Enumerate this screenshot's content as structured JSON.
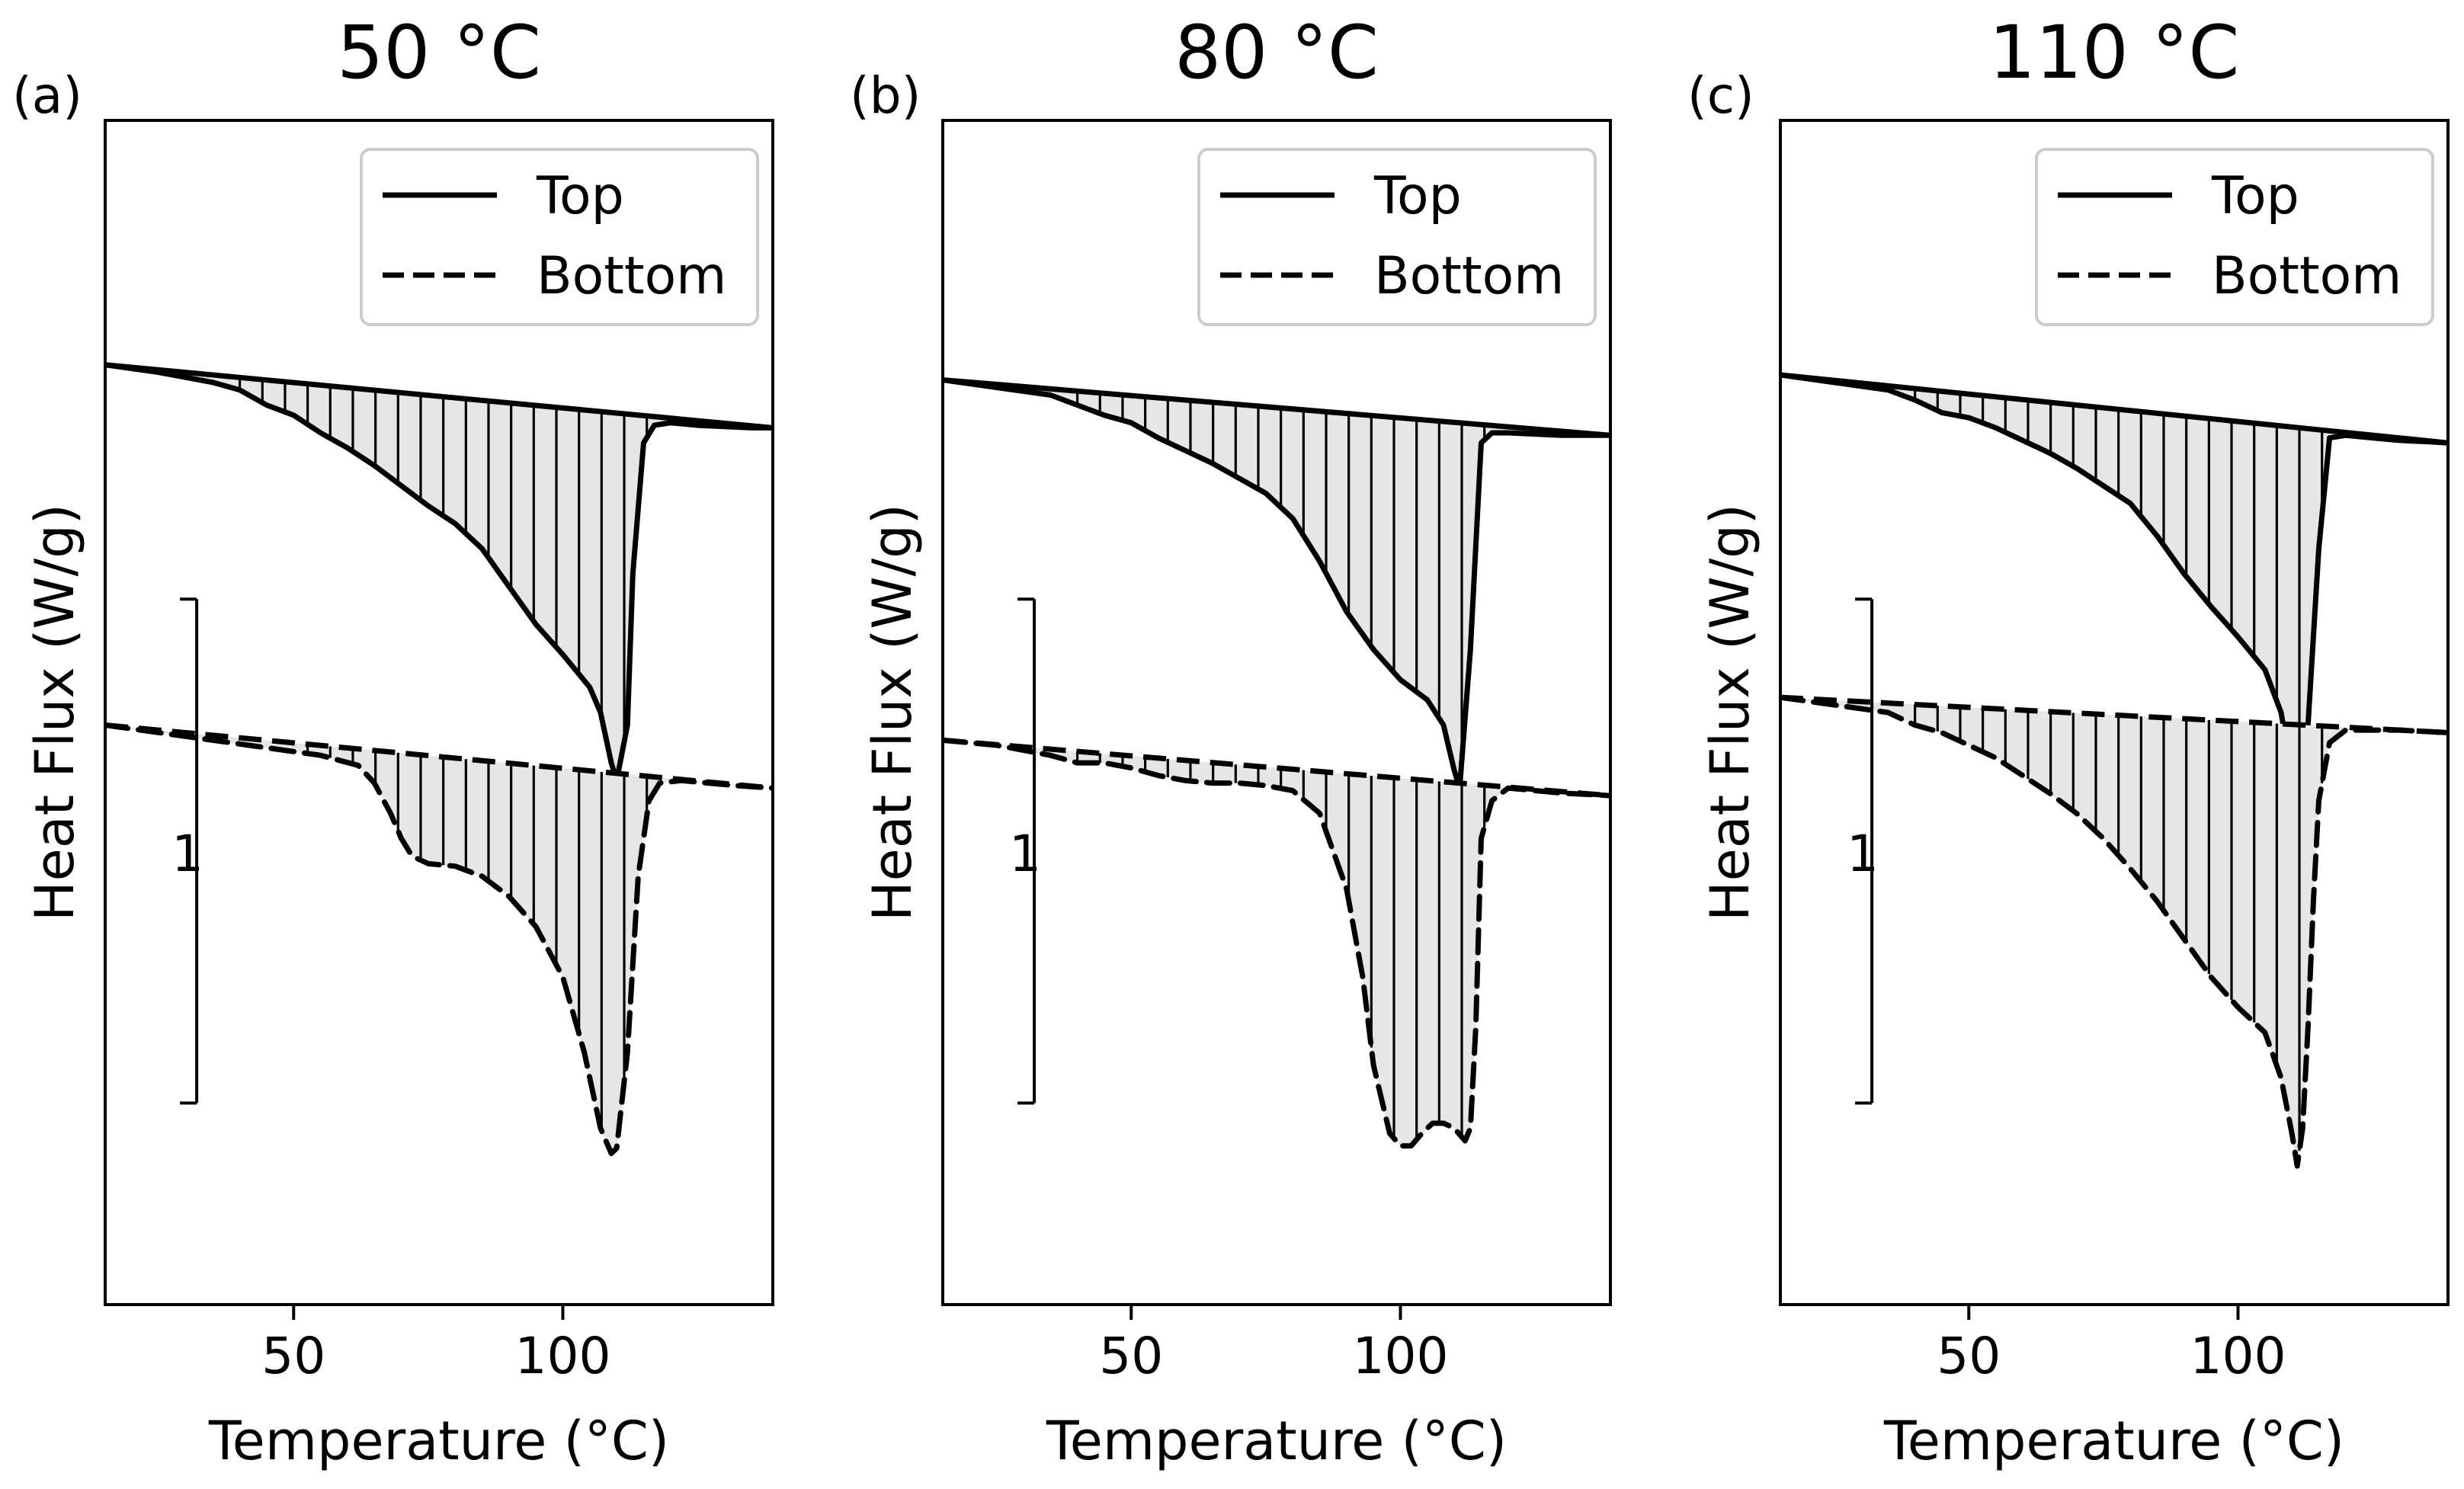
{
  "figure": {
    "shared": {
      "xlabel": "Temperature (°C)",
      "ylabel": "Heat Flux (W/g)",
      "xticks": [
        50,
        100
      ],
      "xlim": [
        15,
        139
      ],
      "scale_bar_label": "1",
      "legend": [
        {
          "label": "Top",
          "style": "solid"
        },
        {
          "label": "Bottom",
          "style": "dashed"
        }
      ]
    }
  },
  "chart_data": [
    {
      "type": "line",
      "panel_label": "(a)",
      "title": "50 °C",
      "xlabel": "Temperature (°C)",
      "ylabel": "Heat Flux (W/g)",
      "xlim": [
        15,
        139
      ],
      "ylim": [
        -3.4,
        1.3
      ],
      "legend_position": "top-right",
      "scale_bar": {
        "x": 32,
        "y0": -2.6,
        "y1": -0.6,
        "label": "1"
      },
      "series": [
        {
          "name": "Top",
          "style": "solid",
          "baseline": [
            [
              15,
              0.33
            ],
            [
              139,
              0.08
            ]
          ],
          "x": [
            15,
            25,
            35,
            40,
            45,
            50,
            55,
            60,
            65,
            70,
            75,
            80,
            85,
            90,
            95,
            100,
            105,
            107,
            109,
            110,
            112,
            113,
            115,
            117,
            120,
            125,
            130,
            135,
            139
          ],
          "y": [
            0.33,
            0.3,
            0.26,
            0.23,
            0.17,
            0.13,
            0.06,
            0.0,
            -0.07,
            -0.15,
            -0.23,
            -0.3,
            -0.4,
            -0.55,
            -0.7,
            -0.82,
            -0.95,
            -1.05,
            -1.25,
            -1.32,
            -1.1,
            -0.5,
            0.02,
            0.09,
            0.1,
            0.09,
            0.085,
            0.08,
            0.08
          ]
        },
        {
          "name": "Bottom",
          "style": "dashed",
          "baseline": [
            [
              15,
              -1.1
            ],
            [
              139,
              -1.35
            ]
          ],
          "x": [
            15,
            25,
            35,
            45,
            55,
            62,
            65,
            68,
            70,
            72,
            75,
            80,
            85,
            90,
            95,
            100,
            104,
            107,
            109,
            110,
            112,
            114,
            116,
            118,
            122,
            127,
            132,
            139
          ],
          "y": [
            -1.1,
            -1.13,
            -1.16,
            -1.19,
            -1.22,
            -1.26,
            -1.33,
            -1.45,
            -1.55,
            -1.62,
            -1.65,
            -1.66,
            -1.7,
            -1.78,
            -1.9,
            -2.1,
            -2.4,
            -2.7,
            -2.8,
            -2.78,
            -2.4,
            -1.7,
            -1.4,
            -1.33,
            -1.32,
            -1.33,
            -1.34,
            -1.35
          ]
        }
      ]
    },
    {
      "type": "line",
      "panel_label": "(b)",
      "title": "80 °C",
      "xlabel": "Temperature (°C)",
      "ylabel": "Heat Flux (W/g)",
      "xlim": [
        15,
        139
      ],
      "ylim": [
        -3.4,
        1.3
      ],
      "legend_position": "top-right",
      "scale_bar": {
        "x": 32,
        "y0": -2.6,
        "y1": -0.6,
        "label": "1"
      },
      "series": [
        {
          "name": "Top",
          "style": "solid",
          "baseline": [
            [
              15,
              0.27
            ],
            [
              139,
              0.05
            ]
          ],
          "x": [
            15,
            25,
            35,
            40,
            45,
            50,
            55,
            60,
            65,
            70,
            75,
            80,
            85,
            90,
            95,
            100,
            105,
            108,
            110,
            111,
            113,
            115,
            117,
            120,
            125,
            130,
            135,
            139
          ],
          "y": [
            0.27,
            0.24,
            0.21,
            0.17,
            0.13,
            0.1,
            0.04,
            -0.01,
            -0.06,
            -0.12,
            -0.18,
            -0.28,
            -0.45,
            -0.65,
            -0.8,
            -0.92,
            -1.0,
            -1.1,
            -1.28,
            -1.35,
            -0.8,
            0.02,
            0.06,
            0.06,
            0.055,
            0.05,
            0.05,
            0.05
          ]
        },
        {
          "name": "Bottom",
          "style": "dashed",
          "baseline": [
            [
              15,
              -1.16
            ],
            [
              139,
              -1.38
            ]
          ],
          "x": [
            15,
            25,
            35,
            40,
            45,
            50,
            55,
            60,
            65,
            70,
            75,
            80,
            85,
            90,
            93,
            95,
            98,
            100,
            102,
            104,
            106,
            108,
            110,
            112,
            113,
            114,
            115,
            117,
            120,
            125,
            130,
            139
          ],
          "y": [
            -1.16,
            -1.18,
            -1.22,
            -1.25,
            -1.25,
            -1.27,
            -1.3,
            -1.32,
            -1.33,
            -1.33,
            -1.34,
            -1.36,
            -1.45,
            -1.75,
            -2.1,
            -2.45,
            -2.72,
            -2.77,
            -2.77,
            -2.72,
            -2.68,
            -2.68,
            -2.7,
            -2.75,
            -2.7,
            -2.3,
            -1.55,
            -1.4,
            -1.35,
            -1.36,
            -1.37,
            -1.38
          ]
        }
      ]
    },
    {
      "type": "line",
      "panel_label": "(c)",
      "title": "110 °C",
      "xlabel": "Temperature (°C)",
      "ylabel": "Heat Flux (W/g)",
      "xlim": [
        15,
        139
      ],
      "ylim": [
        -3.4,
        1.3
      ],
      "legend_position": "top-right",
      "scale_bar": {
        "x": 32,
        "y0": -2.6,
        "y1": -0.6,
        "label": "1"
      },
      "series": [
        {
          "name": "Top",
          "style": "solid",
          "baseline": [
            [
              15,
              0.29
            ],
            [
              139,
              0.02
            ]
          ],
          "x": [
            15,
            25,
            35,
            40,
            45,
            50,
            55,
            60,
            65,
            70,
            75,
            80,
            85,
            90,
            95,
            100,
            105,
            108,
            110,
            111,
            113,
            115,
            117,
            120,
            125,
            130,
            135,
            139
          ],
          "y": [
            0.29,
            0.26,
            0.23,
            0.19,
            0.14,
            0.12,
            0.08,
            0.03,
            -0.02,
            -0.08,
            -0.15,
            -0.22,
            -0.35,
            -0.5,
            -0.63,
            -0.75,
            -0.88,
            -1.05,
            -1.3,
            -1.35,
            -1.1,
            -0.4,
            0.04,
            0.05,
            0.04,
            0.03,
            0.025,
            0.02
          ]
        },
        {
          "name": "Bottom",
          "style": "dashed",
          "baseline": [
            [
              15,
              -0.99
            ],
            [
              139,
              -1.13
            ]
          ],
          "x": [
            15,
            25,
            35,
            40,
            45,
            50,
            55,
            60,
            65,
            70,
            75,
            80,
            85,
            90,
            95,
            100,
            105,
            108,
            110,
            111,
            112,
            113,
            114,
            115,
            117,
            120,
            125,
            130,
            139
          ],
          "y": [
            -0.99,
            -1.02,
            -1.05,
            -1.1,
            -1.13,
            -1.18,
            -1.23,
            -1.3,
            -1.37,
            -1.45,
            -1.55,
            -1.67,
            -1.8,
            -1.95,
            -2.1,
            -2.22,
            -2.32,
            -2.5,
            -2.72,
            -2.85,
            -2.7,
            -2.3,
            -1.8,
            -1.4,
            -1.17,
            -1.12,
            -1.12,
            -1.12,
            -1.13
          ]
        }
      ]
    }
  ]
}
